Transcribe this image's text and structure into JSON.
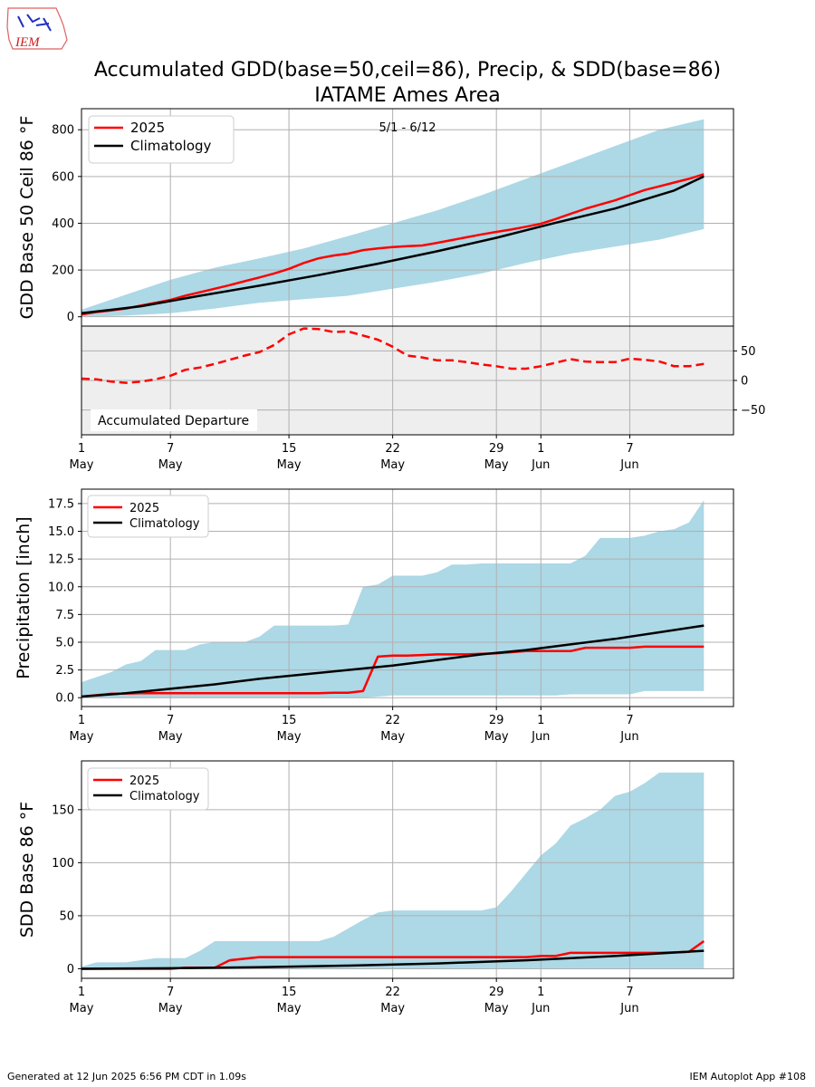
{
  "logo": {
    "text": "IEM"
  },
  "title": {
    "line1": "Accumulated GDD(base=50,ceil=86), Precip, & SDD(base=86)",
    "line2": "IATAME Ames Area"
  },
  "footer": {
    "left": "Generated at 12 Jun 2025 6:56 PM CDT in 1.09s",
    "right": "IEM Autoplot App #108"
  },
  "colors": {
    "year": "#ff0000",
    "climo": "#000000",
    "band": "#add8e6",
    "departure_bg": "#eeeeee",
    "grid": "#b0b0b0"
  },
  "x_ticks": [
    {
      "day": 0,
      "label1": "1",
      "label2": "May"
    },
    {
      "day": 6,
      "label1": "7",
      "label2": "May"
    },
    {
      "day": 14,
      "label1": "15",
      "label2": "May"
    },
    {
      "day": 21,
      "label1": "22",
      "label2": "May"
    },
    {
      "day": 28,
      "label1": "29",
      "label2": "May"
    },
    {
      "day": 31,
      "label1": "1",
      "label2": "Jun"
    },
    {
      "day": 37,
      "label1": "7",
      "label2": "Jun"
    }
  ],
  "chart_data": [
    {
      "type": "line",
      "ylabel": "GDD Base 50 Ceil 86 °F",
      "annotation": "5/1 - 6/12",
      "xlim": [
        0,
        44
      ],
      "ylim": [
        -40,
        890
      ],
      "yticks": [
        0,
        200,
        400,
        600,
        800
      ],
      "legend": "top-left",
      "series": [
        {
          "name": "2025",
          "x": [
            0,
            1,
            2,
            3,
            4,
            5,
            6,
            7,
            8,
            9,
            10,
            11,
            12,
            13,
            14,
            15,
            16,
            17,
            18,
            19,
            20,
            21,
            22,
            23,
            24,
            25,
            26,
            27,
            28,
            29,
            30,
            31,
            32,
            33,
            34,
            35,
            36,
            37,
            38,
            39,
            40,
            41,
            42
          ],
          "values": [
            10,
            20,
            27,
            35,
            48,
            60,
            72,
            90,
            105,
            120,
            135,
            152,
            168,
            185,
            205,
            230,
            250,
            262,
            270,
            285,
            292,
            298,
            302,
            305,
            316,
            328,
            340,
            352,
            363,
            373,
            385,
            398,
            418,
            440,
            462,
            480,
            498,
            520,
            542,
            558,
            574,
            590,
            610
          ]
        },
        {
          "name": "Climatology",
          "x": [
            0,
            4,
            8,
            12,
            16,
            20,
            24,
            28,
            32,
            36,
            40,
            42
          ],
          "values": [
            15,
            45,
            90,
            133,
            178,
            227,
            280,
            338,
            402,
            463,
            540,
            600
          ]
        }
      ],
      "band": {
        "x": [
          0,
          3,
          6,
          9,
          12,
          15,
          18,
          21,
          24,
          27,
          30,
          33,
          36,
          39,
          42
        ],
        "upper": [
          30,
          95,
          158,
          210,
          250,
          292,
          345,
          400,
          455,
          520,
          590,
          660,
          730,
          800,
          845
        ],
        "lower": [
          0,
          5,
          15,
          35,
          60,
          75,
          90,
          120,
          150,
          185,
          230,
          270,
          300,
          330,
          375
        ]
      }
    },
    {
      "type": "line",
      "label": "Accumulated Departure",
      "xlim": [
        0,
        44
      ],
      "ylim": [
        -92,
        92
      ],
      "yticks": [
        -50,
        0,
        50
      ],
      "series": [
        {
          "name": "Accumulated Departure",
          "x": [
            0,
            1,
            2,
            3,
            4,
            5,
            6,
            7,
            8,
            9,
            10,
            11,
            12,
            13,
            14,
            15,
            16,
            17,
            18,
            19,
            20,
            21,
            22,
            23,
            24,
            25,
            26,
            27,
            28,
            29,
            30,
            31,
            32,
            33,
            34,
            35,
            36,
            37,
            38,
            39,
            40,
            41,
            42
          ],
          "values": [
            3,
            2,
            -2,
            -4,
            -2,
            2,
            8,
            18,
            22,
            28,
            35,
            42,
            48,
            60,
            78,
            88,
            87,
            82,
            83,
            76,
            69,
            57,
            42,
            39,
            34,
            34,
            31,
            27,
            24,
            20,
            20,
            24,
            30,
            36,
            32,
            31,
            31,
            37,
            35,
            32,
            24,
            24,
            28
          ]
        }
      ]
    },
    {
      "type": "line",
      "ylabel": "Precipitation [inch]",
      "xlim": [
        0,
        44
      ],
      "ylim": [
        -0.8,
        18.8
      ],
      "yticks": [
        0.0,
        2.5,
        5.0,
        7.5,
        10.0,
        12.5,
        15.0,
        17.5
      ],
      "legend": "top-left",
      "series": [
        {
          "name": "2025",
          "x": [
            0,
            2,
            4,
            6,
            8,
            10,
            12,
            14,
            16,
            17,
            18,
            19,
            20,
            21,
            22,
            23,
            24,
            25,
            26,
            27,
            28,
            29,
            30,
            31,
            32,
            33,
            34,
            35,
            36,
            37,
            38,
            39,
            40,
            41,
            42
          ],
          "values": [
            0.1,
            0.35,
            0.4,
            0.4,
            0.4,
            0.4,
            0.4,
            0.4,
            0.4,
            0.45,
            0.45,
            0.6,
            3.7,
            3.8,
            3.8,
            3.85,
            3.9,
            3.9,
            3.9,
            3.95,
            4.0,
            4.1,
            4.2,
            4.2,
            4.2,
            4.2,
            4.5,
            4.5,
            4.5,
            4.5,
            4.6,
            4.6,
            4.6,
            4.6,
            4.6
          ]
        },
        {
          "name": "Climatology",
          "x": [
            0,
            3,
            6,
            9,
            12,
            15,
            18,
            21,
            24,
            27,
            30,
            33,
            36,
            39,
            42
          ],
          "values": [
            0.1,
            0.4,
            0.8,
            1.2,
            1.7,
            2.1,
            2.5,
            2.9,
            3.4,
            3.9,
            4.3,
            4.8,
            5.3,
            5.9,
            6.5
          ]
        }
      ],
      "band": {
        "x": [
          0,
          2,
          3,
          4,
          5,
          6,
          7,
          8,
          9,
          10,
          11,
          12,
          13,
          14,
          15,
          16,
          17,
          18,
          19,
          20,
          21,
          22,
          23,
          24,
          25,
          26,
          27,
          28,
          29,
          30,
          31,
          32,
          33,
          34,
          35,
          36,
          37,
          38,
          39,
          40,
          41,
          42
        ],
        "upper": [
          1.4,
          2.3,
          3.0,
          3.3,
          4.3,
          4.3,
          4.3,
          4.8,
          5.0,
          5.0,
          5.0,
          5.5,
          6.5,
          6.5,
          6.5,
          6.5,
          6.5,
          6.6,
          10.0,
          10.2,
          11.0,
          11.0,
          11.0,
          11.3,
          12.0,
          12.0,
          12.1,
          12.1,
          12.1,
          12.1,
          12.1,
          12.1,
          12.1,
          12.8,
          14.4,
          14.4,
          14.4,
          14.6,
          15.0,
          15.2,
          15.8,
          17.8
        ],
        "lower": [
          0,
          0,
          0,
          0,
          0,
          0,
          0,
          0,
          0,
          0,
          0,
          0,
          0,
          0,
          0,
          0,
          0,
          0,
          0,
          0.1,
          0.2,
          0.2,
          0.2,
          0.2,
          0.2,
          0.2,
          0.2,
          0.2,
          0.2,
          0.2,
          0.2,
          0.2,
          0.3,
          0.3,
          0.3,
          0.3,
          0.3,
          0.6,
          0.6,
          0.6,
          0.6,
          0.6
        ]
      }
    },
    {
      "type": "line",
      "ylabel": "SDD Base 86 °F",
      "xlim": [
        0,
        44
      ],
      "ylim": [
        -9,
        196
      ],
      "yticks": [
        0,
        50,
        100,
        150
      ],
      "legend": "top-left",
      "series": [
        {
          "name": "2025",
          "x": [
            0,
            6,
            7,
            9,
            10,
            12,
            15,
            18,
            21,
            24,
            27,
            30,
            31,
            32,
            33,
            35,
            37,
            39,
            41,
            42
          ],
          "values": [
            0,
            0,
            1,
            1,
            8,
            11,
            11,
            11,
            11,
            11,
            11,
            11,
            12,
            12,
            15,
            15,
            15,
            15,
            16,
            26
          ]
        },
        {
          "name": "Climatology",
          "x": [
            0,
            6,
            12,
            18,
            24,
            30,
            36,
            42
          ],
          "values": [
            0,
            0.5,
            1.5,
            3,
            5,
            8,
            12,
            17
          ]
        }
      ],
      "band": {
        "x": [
          0,
          1,
          3,
          5,
          7,
          8,
          9,
          10,
          12,
          14,
          15,
          16,
          17,
          18,
          19,
          20,
          21,
          22,
          23,
          24,
          25,
          26,
          27,
          28,
          29,
          30,
          31,
          32,
          33,
          34,
          35,
          36,
          37,
          38,
          39,
          40,
          41,
          42
        ],
        "upper": [
          2,
          6,
          6,
          10,
          10,
          17,
          26,
          26,
          26,
          26,
          26,
          26,
          30,
          38,
          46,
          53,
          55,
          55,
          55,
          55,
          55,
          55,
          55,
          58,
          73,
          90,
          107,
          118,
          135,
          142,
          150,
          163,
          167,
          175,
          185,
          185,
          185,
          185
        ],
        "lower": [
          0,
          0,
          0,
          0,
          0,
          0,
          0,
          0,
          0,
          0,
          0,
          0,
          0,
          0,
          0,
          0,
          0,
          0,
          0,
          0,
          0,
          0,
          0,
          0,
          0,
          0,
          0,
          0,
          0,
          0,
          0,
          0,
          0,
          0,
          0,
          0,
          0,
          0
        ]
      }
    }
  ]
}
